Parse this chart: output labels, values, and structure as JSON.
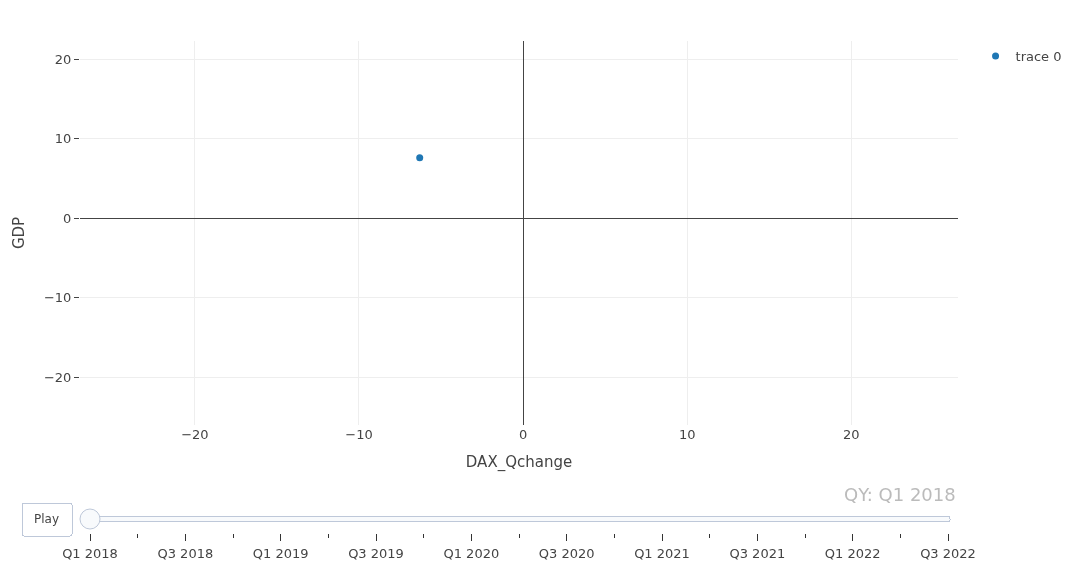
{
  "chart_data": {
    "type": "scatter",
    "xlabel": "DAX_Qchange",
    "ylabel": "GDP",
    "x": [
      -6.3
    ],
    "series": [
      {
        "name": "trace 0",
        "color": "#1f77b4",
        "values": [
          7.6
        ]
      }
    ],
    "xlim": [
      -27,
      26.5
    ],
    "xticks": [
      -20,
      -10,
      0,
      10,
      20
    ],
    "ylim": [
      -26,
      22.3
    ],
    "yticks": [
      -20,
      -10,
      0,
      10,
      20
    ],
    "grid": true,
    "legend": "top right",
    "marker": "circle",
    "annotations": [
      "Play",
      "QY: Q1 2018",
      "Q1 2018",
      "Q3 2018",
      "Q1 2019",
      "Q3 2019",
      "Q1 2020",
      "Q3 2020",
      "Q1 2021",
      "Q3 2021",
      "Q1 2022",
      "Q3 2022"
    ]
  }
}
